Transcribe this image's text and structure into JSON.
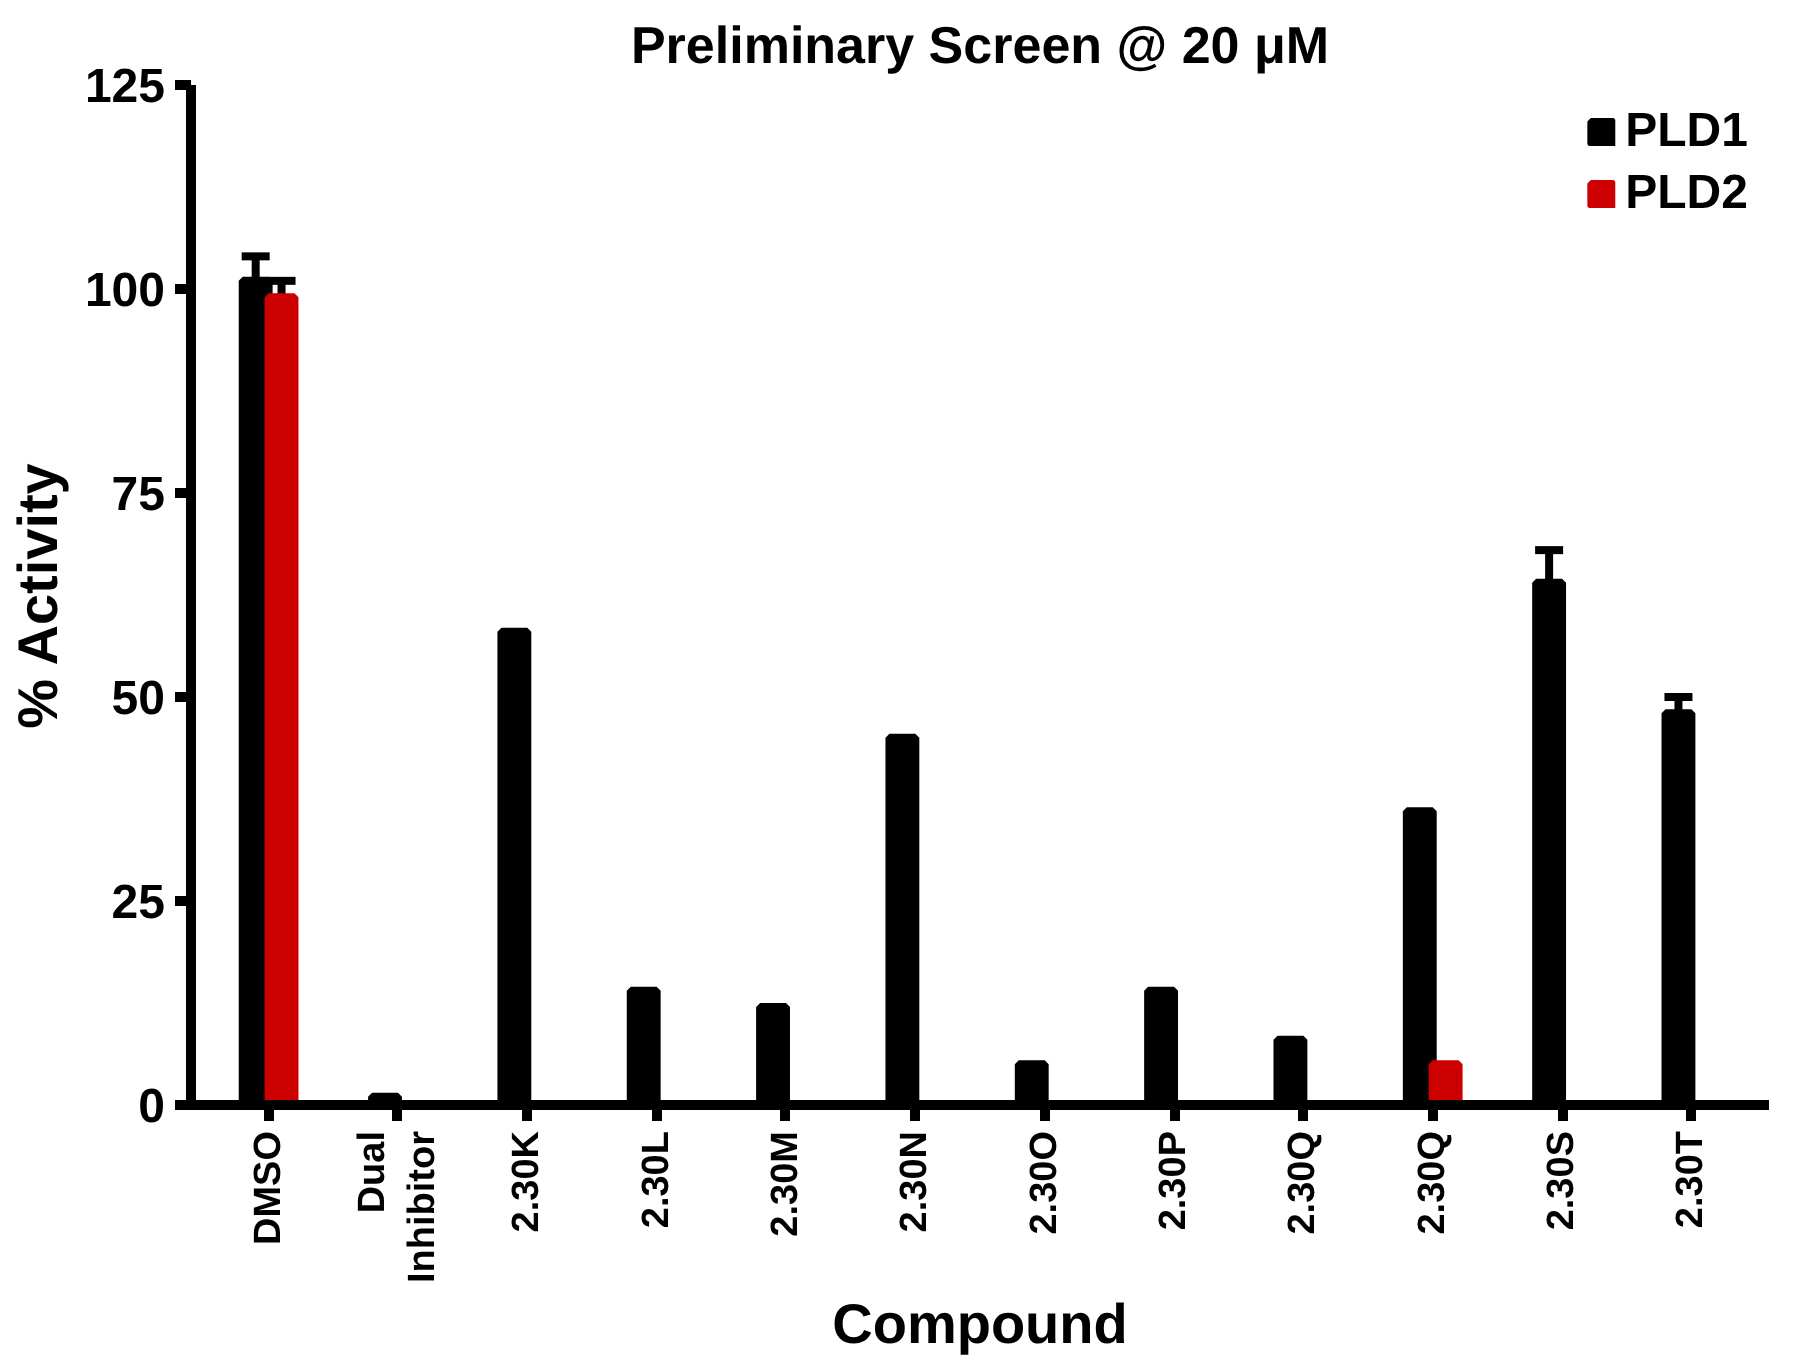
{
  "chart_data": {
    "type": "bar",
    "title": "Preliminary Screen @ 20 μM",
    "xlabel": "Compound",
    "ylabel": "% Activity",
    "categories": [
      "DMSO",
      "Dual\nInhibitor",
      "2.30K",
      "2.30L",
      "2.30M",
      "2.30N",
      "2.30O",
      "2.30P",
      "2.30Q",
      "2.30Q",
      "2.30S",
      "2.30T"
    ],
    "series": [
      {
        "name": "PLD1",
        "color": "#000000",
        "values": [
          101,
          1,
          58,
          14,
          12,
          45,
          5,
          14,
          8,
          36,
          64,
          48
        ],
        "errors": [
          3,
          null,
          null,
          null,
          null,
          null,
          null,
          null,
          null,
          null,
          4,
          2
        ]
      },
      {
        "name": "PLD2",
        "color": "#cc0000",
        "values": [
          99,
          0,
          0,
          0,
          0,
          0,
          0,
          0,
          0,
          5,
          0,
          0
        ],
        "errors": [
          2,
          null,
          null,
          null,
          null,
          null,
          null,
          null,
          null,
          null,
          null,
          null
        ]
      }
    ],
    "ylim": [
      0,
      125
    ],
    "yticks": [
      0,
      25,
      50,
      75,
      100,
      125
    ],
    "grid": false,
    "legend": "top right"
  }
}
